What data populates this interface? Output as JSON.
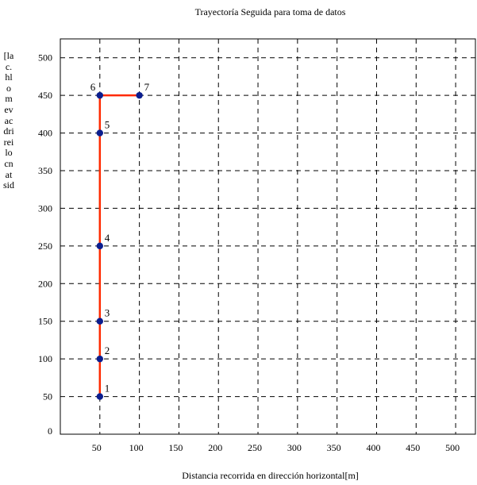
{
  "chart_data": {
    "type": "line",
    "title": "Trayectoría Seguida para toma de datos",
    "xlabel": "Distancia recorrida en dirección horizontal[m]",
    "ylabel": "[lac.hlomevacdrireilocnat sid",
    "xlim": [
      0,
      525
    ],
    "ylim": [
      0,
      525
    ],
    "x_ticks": [
      50,
      100,
      150,
      200,
      250,
      300,
      350,
      400,
      450,
      500
    ],
    "y_ticks": [
      0,
      50,
      100,
      150,
      200,
      250,
      300,
      350,
      400,
      450,
      500
    ],
    "grid": true,
    "series": [
      {
        "x": [
          50,
          50,
          50,
          50,
          50,
          50,
          100
        ],
        "y": [
          50,
          100,
          150,
          250,
          400,
          450,
          450
        ],
        "point_labels": [
          "1",
          "2",
          "3",
          "4",
          "5",
          "6",
          "7"
        ]
      }
    ],
    "colors": {
      "line": "#ff2a00",
      "marker": "#0b1e8f",
      "grid": "#000000"
    }
  }
}
